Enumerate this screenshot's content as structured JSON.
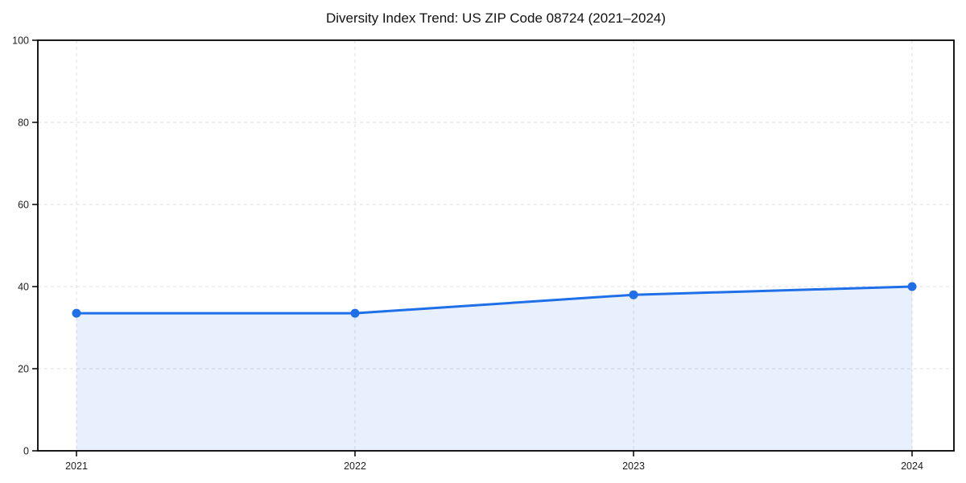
{
  "chart_data": {
    "type": "line",
    "title": "Diversity Index Trend: US ZIP Code 08724 (2021–2024)",
    "x": [
      "2021",
      "2022",
      "2023",
      "2024"
    ],
    "values": [
      33.5,
      33.5,
      38,
      40
    ],
    "xlabel": "",
    "ylabel": "",
    "ylim": [
      0,
      100
    ],
    "yticks": [
      0,
      20,
      40,
      60,
      80,
      100
    ],
    "grid": "dashed",
    "legend_position": "none",
    "line_color": "#1f6fe8",
    "fill_opacity": 0.1,
    "marker": "circle",
    "axis_color": "#000000",
    "tick_label_color": "#1d1d1d"
  }
}
